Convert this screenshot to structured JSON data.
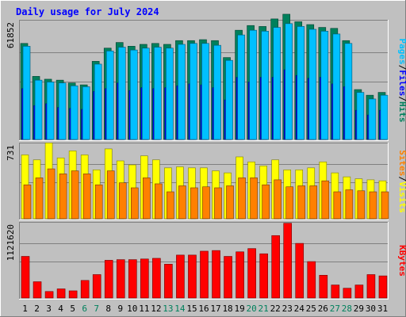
{
  "colors": {
    "background": "#c0c0c0",
    "panel": "#c0c0c0",
    "gridline": "#808080",
    "title": "#0000ff",
    "hits": "#00805c",
    "files": "#0000ff",
    "pages": "#00c0ff",
    "visits": "#ffff00",
    "sites": "#ff8000",
    "kbytes": "#ff0000",
    "axis_label": "#000000",
    "weekend_label": "#00805c"
  },
  "chart_data": {
    "type": "bar",
    "title": "Daily usage for July 2024",
    "categories": [
      "1",
      "2",
      "3",
      "4",
      "5",
      "6",
      "7",
      "8",
      "9",
      "10",
      "11",
      "12",
      "13",
      "14",
      "15",
      "16",
      "17",
      "18",
      "19",
      "20",
      "21",
      "22",
      "23",
      "24",
      "25",
      "26",
      "27",
      "28",
      "29",
      "30",
      "31"
    ],
    "weekend_days": [
      "6",
      "7",
      "13",
      "14",
      "20",
      "21",
      "27",
      "28"
    ],
    "panels": [
      {
        "axis_max_label": "61852",
        "axis_max": 61852,
        "legend": [
          "Pages",
          "/",
          "Files",
          "/",
          "Hits"
        ],
        "series": [
          {
            "name": "Hits",
            "values": [
              51000,
              33500,
              32000,
              31500,
              30000,
              29000,
              41500,
              48500,
              51500,
              49500,
              50500,
              51000,
              50500,
              52500,
              52500,
              53000,
              52500,
              43500,
              58000,
              60500,
              60000,
              64000,
              66500,
              62500,
              61000,
              59500,
              59000,
              52500,
              26500,
              23500,
              25000
            ]
          },
          {
            "name": "Files",
            "values": [
              27000,
              18000,
              19000,
              17000,
              16500,
              16000,
              25500,
              27000,
              30000,
              26000,
              27500,
              27000,
              27500,
              28500,
              29500,
              29000,
              27500,
              21000,
              33000,
              30500,
              33000,
              33000,
              37000,
              34000,
              32500,
              33000,
              29500,
              28000,
              15500,
              13000,
              15500
            ]
          },
          {
            "name": "Pages",
            "values": [
              49500,
              31500,
              30500,
              30000,
              28500,
              28000,
              40000,
              47000,
              49000,
              47500,
              48500,
              49000,
              48500,
              50500,
              51000,
              51000,
              50000,
              42000,
              55500,
              58000,
              57500,
              59500,
              61500,
              60000,
              58500,
              57500,
              56000,
              51000,
              25000,
              21500,
              23500
            ]
          }
        ]
      },
      {
        "axis_max_label": "731",
        "axis_max": 731,
        "legend": [
          "Sites",
          "/",
          "Visits"
        ],
        "series": [
          {
            "name": "Visits",
            "values": [
              640,
              590,
              760,
              610,
              680,
              640,
              490,
              700,
              580,
              540,
              630,
              590,
              510,
              520,
              510,
              510,
              480,
              460,
              620,
              570,
              530,
              590,
              490,
              490,
              510,
              570,
              460,
              420,
              400,
              390,
              380
            ]
          },
          {
            "name": "Sites",
            "values": [
              340,
              410,
              500,
              450,
              480,
              450,
              340,
              480,
              360,
              310,
              410,
              350,
              270,
              330,
              310,
              320,
              310,
              330,
              410,
              410,
              340,
              390,
              320,
              330,
              330,
              380,
              270,
              290,
              280,
              270,
              270
            ]
          }
        ]
      },
      {
        "axis_max_label": "1121620",
        "axis_max": 1121620,
        "legend": [
          "KBytes"
        ],
        "series": [
          {
            "name": "KBytes",
            "values": [
              640000,
              250000,
              100000,
              140000,
              110000,
              270000,
              360000,
              580000,
              590000,
              590000,
              600000,
              610000,
              520000,
              660000,
              660000,
              720000,
              730000,
              640000,
              710000,
              760000,
              680000,
              960000,
              1150000,
              840000,
              560000,
              350000,
              200000,
              150000,
              200000,
              360000,
              340000
            ]
          }
        ]
      }
    ]
  }
}
